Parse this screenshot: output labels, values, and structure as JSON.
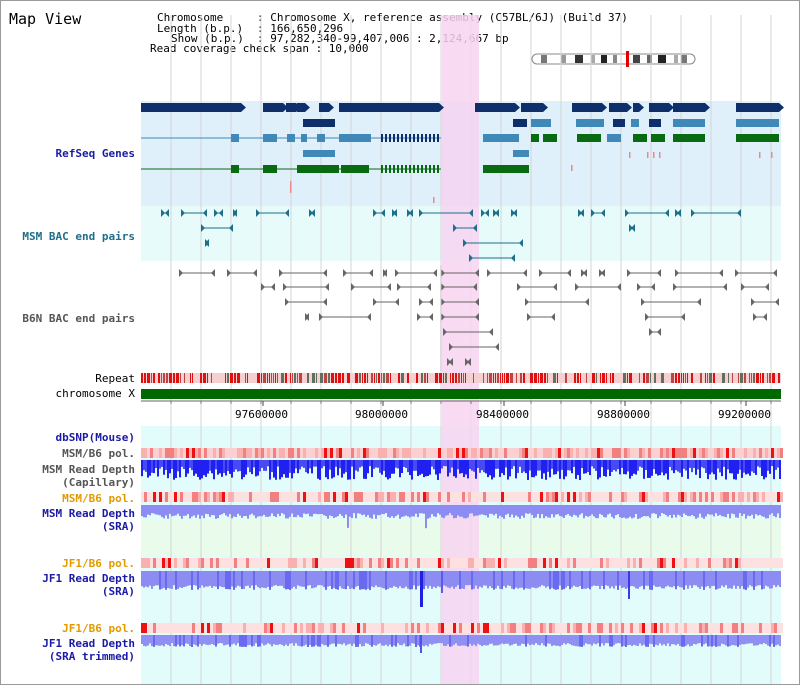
{
  "title": "Map View",
  "info": {
    "chromosome_key": "Chromosome",
    "chromosome_val": ": Chromosome X, reference assembly (C57BL/6J) (Build 37)",
    "length_key": "Length (b.p.)",
    "length_val": ": 166,650,296",
    "show_key": "Show (b.p.)",
    "show_val": ": 97,282,340-99,407,006 : 2,124,667 bp",
    "read_coverage": "Read coverage check span : 10,000"
  },
  "tracks": {
    "refseq": "RefSeq Genes",
    "msm_bac": "MSM BAC end pairs",
    "b6n_bac": "B6N BAC end pairs",
    "repeat": "Repeat",
    "chromosome": "chromosome X",
    "dbsnp": "dbSNP(Mouse)",
    "msm_b6_pol_1": "MSM/B6 pol.",
    "msm_depth_cap": "MSM Read Depth\n(Capillary)",
    "msm_b6_pol_2": "MSM/B6 pol.",
    "msm_depth_sra": "MSM Read Depth\n(SRA)",
    "jf1_b6_pol_1": "JF1/B6 pol.",
    "jf1_depth_sra": "JF1 Read Depth\n(SRA)",
    "jf1_b6_pol_2": "JF1/B6 pol.",
    "jf1_depth_trim": "JF1 Read Depth\n(SRA trimmed)"
  },
  "axis_ticks": [
    "97600000",
    "98000000",
    "98400000",
    "98800000",
    "99200000"
  ],
  "colors": {
    "refseq_dark": "#0f2f6a",
    "refseq_mid": "#3f88b8",
    "refseq_green": "#0a6a12",
    "highlight": "#f7d4f1",
    "label_blue": "#1a1aa6",
    "label_teal": "#1f6e8a",
    "label_gray": "#555555",
    "label_orange": "#e39a00"
  }
}
